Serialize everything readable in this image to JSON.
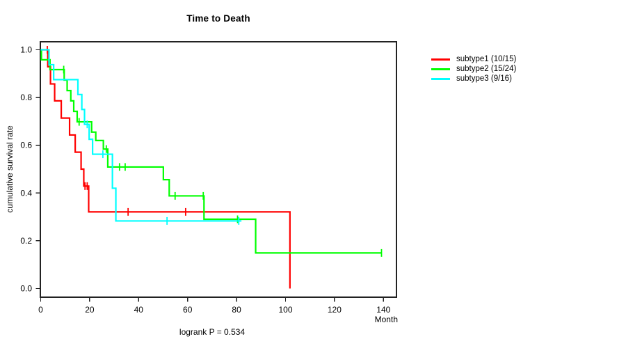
{
  "window": {
    "background": "#ffffff"
  },
  "chart_data": {
    "type": "line",
    "subtype": "kaplan-meier-step-survival",
    "title": "Time to Death",
    "xlabel": "Month",
    "ylabel": "cumulative survival rate",
    "annotation": "logrank P = 0.534",
    "xlim": [
      0,
      145
    ],
    "ylim": [
      0.0,
      1.03
    ],
    "x_ticks": [
      0,
      20,
      40,
      60,
      80,
      100,
      120,
      140
    ],
    "y_tick_labels": [
      "0.0",
      "0.2",
      "0.4",
      "0.6",
      "0.8",
      "1.0"
    ],
    "grid": false,
    "legend_position": "right-outside",
    "axis_color": "#222222",
    "series": [
      {
        "name": "subtype1",
        "legend": "subtype1 (10/15)",
        "color": "#ff0000",
        "points": [
          [
            0,
            1.0
          ],
          [
            2.9,
            0.929
          ],
          [
            4.0,
            0.857
          ],
          [
            5.7,
            0.786
          ],
          [
            8.4,
            0.714
          ],
          [
            11.8,
            0.643
          ],
          [
            14.1,
            0.571
          ],
          [
            16.5,
            0.5
          ],
          [
            17.6,
            0.429
          ],
          [
            19.6,
            0.321
          ],
          [
            101.8,
            0.0
          ]
        ],
        "end_month": 101.8,
        "censors": [
          [
            2.7,
            1.0
          ],
          [
            18.1,
            0.429
          ],
          [
            19.0,
            0.429
          ],
          [
            35.7,
            0.321
          ],
          [
            59.2,
            0.321
          ]
        ]
      },
      {
        "name": "subtype2",
        "legend": "subtype2 (15/24)",
        "color": "#00ff00",
        "points": [
          [
            0,
            1.0
          ],
          [
            0.3,
            0.958
          ],
          [
            3.8,
            0.917
          ],
          [
            9.6,
            0.873
          ],
          [
            10.8,
            0.829
          ],
          [
            12.3,
            0.786
          ],
          [
            13.5,
            0.742
          ],
          [
            14.9,
            0.698
          ],
          [
            20.8,
            0.655
          ],
          [
            22.5,
            0.62
          ],
          [
            25.6,
            0.584
          ],
          [
            27.4,
            0.509
          ],
          [
            50.1,
            0.456
          ],
          [
            52.5,
            0.388
          ],
          [
            66.7,
            0.29
          ],
          [
            87.8,
            0.149
          ]
        ],
        "end_month": 139.2,
        "censors": [
          [
            9.4,
            0.917
          ],
          [
            15.7,
            0.698
          ],
          [
            26.8,
            0.584
          ],
          [
            32.2,
            0.509
          ],
          [
            34.5,
            0.509
          ],
          [
            54.9,
            0.388
          ],
          [
            66.4,
            0.388
          ],
          [
            80.4,
            0.29
          ],
          [
            139.2,
            0.149
          ]
        ]
      },
      {
        "name": "subtype3",
        "legend": "subtype3 (9/16)",
        "color": "#00ffff",
        "points": [
          [
            0,
            1.0
          ],
          [
            3.4,
            0.9375
          ],
          [
            5.3,
            0.875
          ],
          [
            15.2,
            0.8125
          ],
          [
            16.8,
            0.75
          ],
          [
            17.9,
            0.6875
          ],
          [
            19.8,
            0.625
          ],
          [
            21.2,
            0.5625
          ],
          [
            29.3,
            0.42
          ],
          [
            30.7,
            0.283
          ]
        ],
        "end_month": 82.0,
        "censors": [
          [
            19.0,
            0.6875
          ],
          [
            25.4,
            0.5625
          ],
          [
            51.6,
            0.283
          ],
          [
            80.9,
            0.283
          ]
        ]
      }
    ]
  }
}
